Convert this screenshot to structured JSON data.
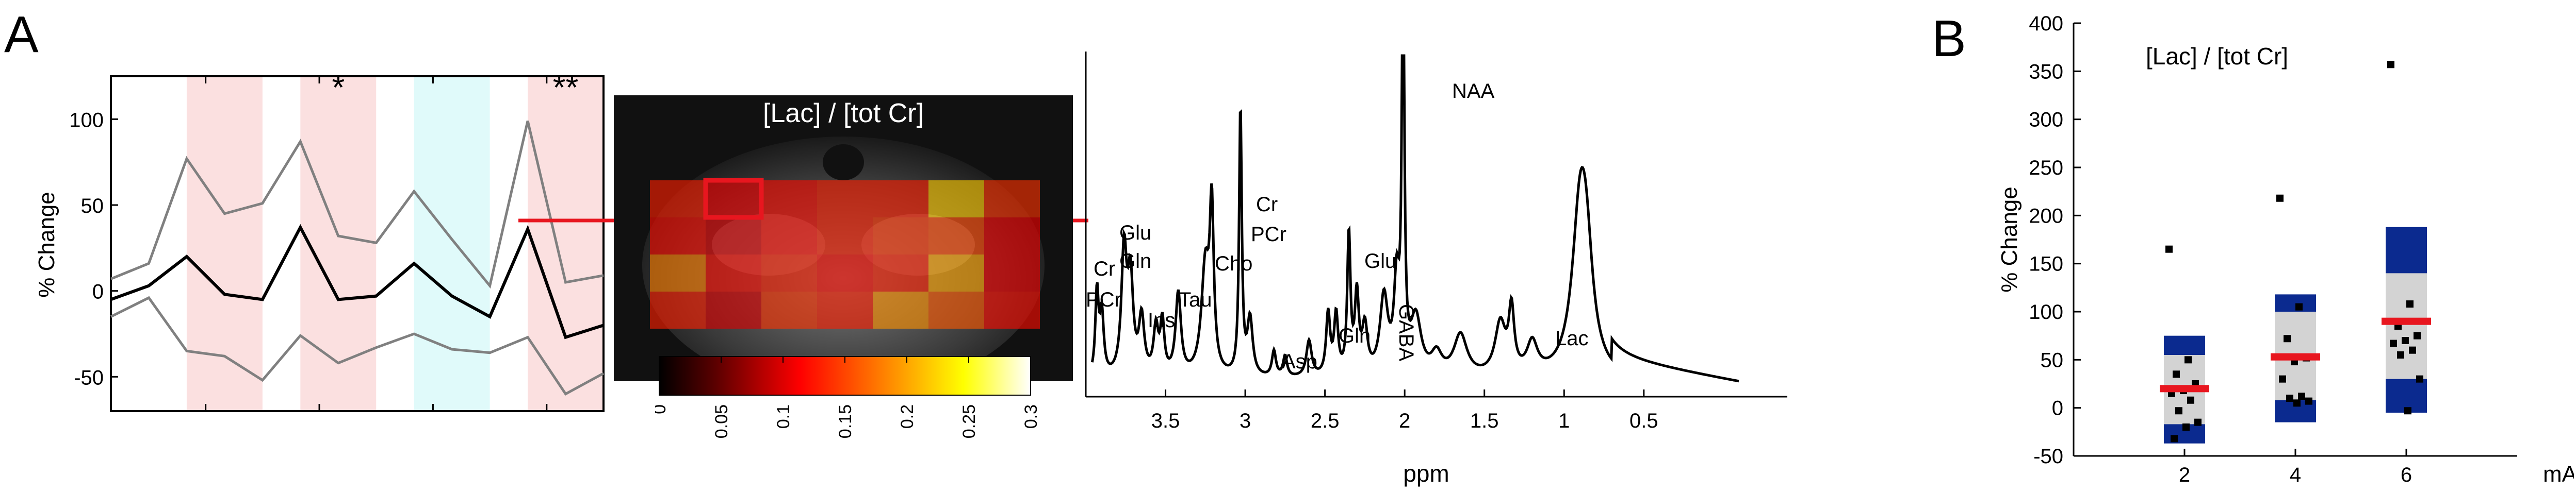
{
  "panel_labels": {
    "a": "A",
    "b": "B"
  },
  "brain_map": {
    "title": "[Lac] / [tot Cr]",
    "colorbar_ticks": [
      "0",
      "0.05",
      "0.1",
      "0.15",
      "0.2",
      "0.25",
      "0.3"
    ],
    "colorbar_range": [
      0,
      0.3
    ],
    "grid": [
      [
        0.13,
        0.11,
        0.12,
        0.13,
        0.13,
        0.22,
        0.14
      ],
      [
        0.12,
        0.1,
        0.12,
        0.13,
        0.14,
        0.15,
        0.11
      ],
      [
        0.18,
        0.12,
        0.13,
        0.12,
        0.13,
        0.2,
        0.11
      ],
      [
        0.13,
        0.1,
        0.14,
        0.13,
        0.19,
        0.16,
        0.12
      ]
    ],
    "highlighted_voxel": {
      "row": 0,
      "col": 1
    }
  },
  "chart_data": [
    {
      "type": "line",
      "panel": "A-left",
      "ylabel": "% Change",
      "xlabel": "",
      "ylim": [
        -70,
        125
      ],
      "yticks": [
        -50,
        0,
        50,
        100
      ],
      "x": [
        0,
        1,
        2,
        3,
        4,
        5,
        6,
        7,
        8,
        9,
        10,
        11,
        12,
        13
      ],
      "series": [
        {
          "role": "mean",
          "color": "#000000",
          "values": [
            -5,
            3,
            20,
            -2,
            -5,
            37,
            -5,
            -3,
            16,
            -3,
            -15,
            36,
            -27,
            -20
          ]
        },
        {
          "role": "upper",
          "color": "#808080",
          "values": [
            7,
            16,
            77,
            45,
            51,
            87,
            32,
            28,
            58,
            30,
            3,
            99,
            5,
            9
          ]
        },
        {
          "role": "lower",
          "color": "#808080",
          "values": [
            -15,
            -4,
            -35,
            -38,
            -52,
            -26,
            -42,
            -33,
            -25,
            -34,
            -36,
            -27,
            -60,
            -48
          ]
        }
      ],
      "shaded_bands": [
        {
          "from": 2,
          "to": 4,
          "color": "#fbe0e0"
        },
        {
          "from": 5,
          "to": 7,
          "color": "#fbe0e0"
        },
        {
          "from": 8,
          "to": 10,
          "color": "#e0fafa"
        },
        {
          "from": 11,
          "to": 13,
          "color": "#fbe0e0"
        }
      ],
      "annotations": [
        {
          "text": "*",
          "x": 6,
          "y": 118
        },
        {
          "text": "**",
          "x": 12,
          "y": 118
        }
      ]
    },
    {
      "type": "line",
      "panel": "A-spectrum",
      "xlabel": "ppm",
      "xlim": [
        4.0,
        -0.4
      ],
      "x_reversed": true,
      "xticks": [
        "3.5",
        "3",
        "2.5",
        "2",
        "1.5",
        "1",
        "0.5"
      ],
      "peak_labels": [
        {
          "text": "Cr",
          "ppm": 3.9,
          "line": 1
        },
        {
          "text": "PCr",
          "ppm": 3.9,
          "line": 2
        },
        {
          "text": "Glu",
          "ppm": 3.75,
          "line": 1
        },
        {
          "text": "Gln",
          "ppm": 3.75,
          "line": 2
        },
        {
          "text": "Ins",
          "ppm": 3.55,
          "line": 1
        },
        {
          "text": "Tau",
          "ppm": 3.42,
          "line": 1
        },
        {
          "text": "Cho",
          "ppm": 3.21,
          "line": 1
        },
        {
          "text": "Cr",
          "ppm": 3.03,
          "line": 1
        },
        {
          "text": "PCr",
          "ppm": 3.03,
          "line": 2
        },
        {
          "text": "Asp",
          "ppm": 2.8,
          "line": 1
        },
        {
          "text": "Glu",
          "ppm": 2.35,
          "line": 1
        },
        {
          "text": "Gln",
          "ppm": 2.45,
          "line": 1
        },
        {
          "text": "GABA",
          "ppm": 2.28,
          "line": 1
        },
        {
          "text": "NAA",
          "ppm": 2.01,
          "line": 1
        },
        {
          "text": "Lac",
          "ppm": 1.33,
          "line": 1
        }
      ]
    },
    {
      "type": "scatter",
      "panel": "B",
      "title": "[Lac] / [tot Cr]",
      "ylabel": "% Change",
      "xlabel": "mA",
      "ylim": [
        -50,
        400
      ],
      "yticks": [
        -50,
        0,
        50,
        100,
        150,
        200,
        250,
        300,
        350,
        400
      ],
      "xticks": [
        2,
        4,
        6
      ],
      "groups": [
        {
          "x": 2,
          "mean": 20,
          "inner": [
            -17,
            55
          ],
          "outer": [
            -37,
            75
          ],
          "points": [
            165,
            50,
            35,
            25,
            18,
            15,
            8,
            -3,
            -15,
            -20,
            -32
          ]
        },
        {
          "x": 4,
          "mean": 53,
          "inner": [
            8,
            100
          ],
          "outer": [
            -15,
            118
          ],
          "points": [
            218,
            105,
            72,
            52,
            48,
            30,
            12,
            10,
            7,
            5
          ]
        },
        {
          "x": 6,
          "mean": 90,
          "inner": [
            30,
            140
          ],
          "outer": [
            -5,
            188
          ],
          "points": [
            357,
            108,
            85,
            75,
            70,
            67,
            60,
            55,
            30,
            -3
          ]
        }
      ],
      "colors": {
        "inner": "#d3d3d3",
        "outer": "#0b2a8f",
        "mean": "#e8161f",
        "points": "#000000"
      }
    }
  ]
}
